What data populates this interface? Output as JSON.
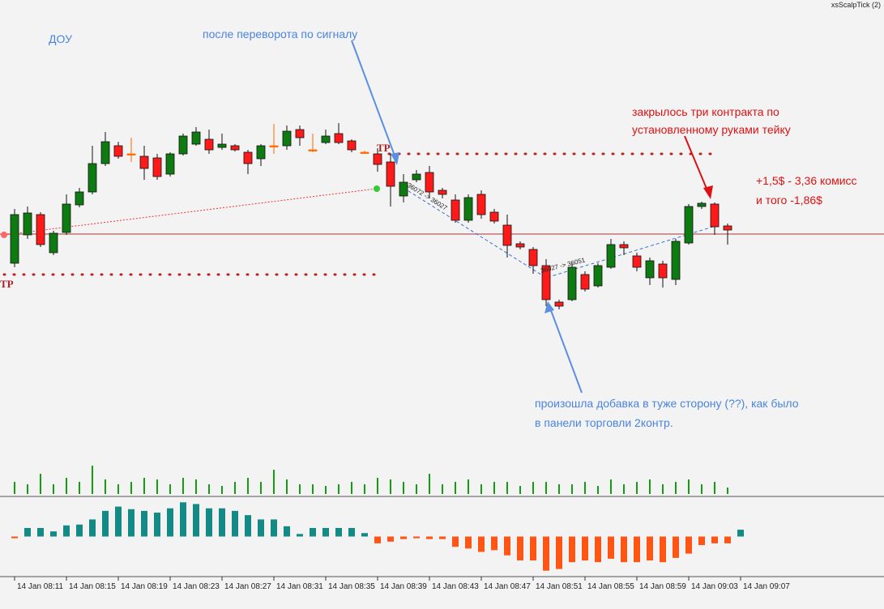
{
  "chart_data": {
    "type": "candlestick",
    "indicator_label": "xsScalpTick (2)",
    "categories": [
      "14 Jan 08:11",
      null,
      null,
      null,
      "14 Jan 08:15",
      null,
      null,
      null,
      "14 Jan 08:19",
      null,
      null,
      null,
      "14 Jan 08:23",
      null,
      null,
      null,
      "14 Jan 08:27",
      null,
      null,
      null,
      "14 Jan 08:31",
      null,
      null,
      null,
      "14 Jan 08:35",
      null,
      null,
      null,
      "14 Jan 08:39",
      null,
      null,
      null,
      "14 Jan 08:43",
      null,
      null,
      null,
      "14 Jan 08:47",
      null,
      null,
      null,
      "14 Jan 08:51",
      null,
      null,
      null,
      "14 Jan 08:55",
      null,
      null,
      null,
      "14 Jan 08:59",
      null,
      null,
      null,
      "14 Jan 09:03",
      null,
      null,
      null,
      "14 Jan 09:07"
    ],
    "open": [
      36035.6,
      36049.6,
      36059.6,
      36040.8,
      36050.8,
      36064.4,
      36070.8,
      36084.8,
      36093.6,
      36089.6,
      36088.4,
      36087.6,
      36079.6,
      36089.6,
      36094.4,
      36096.8,
      36092.8,
      36093.6,
      36090.4,
      36087.2,
      36093.6,
      36093.6,
      36101.6,
      36091.6,
      36095.2,
      36099.6,
      36096,
      36090.4,
      36089.6,
      36085.6,
      36068.8,
      36076.8,
      36080.4,
      36071.6,
      36066.8,
      36056.8,
      36069.6,
      36060.8,
      36054.4,
      36045.2,
      36042.4,
      36034.4,
      36016.4,
      36017.6,
      36030,
      36024.4,
      36033.6,
      36044.8,
      36039.2,
      36028.4,
      36035.2,
      36027.6,
      36045.6,
      36063.6,
      36064.8,
      36054,
      null
    ],
    "high": [
      36062.4,
      36063.6,
      36060.8,
      36051.6,
      36069.6,
      36072.8,
      36093.6,
      36100.4,
      36095.6,
      36097.6,
      36093.6,
      36089.6,
      36090.4,
      36099.6,
      36102.8,
      36101.6,
      36099.6,
      36094.4,
      36091.6,
      36094.4,
      36104.4,
      36103.6,
      36103.6,
      36099.6,
      36101.6,
      36104.8,
      36096.8,
      36091.2,
      36092.4,
      36089.6,
      36079.6,
      36081.6,
      36083.6,
      36072.8,
      36069.6,
      36069.6,
      36071.6,
      36062.4,
      36059.6,
      36046.4,
      36043.6,
      36037.6,
      36017.6,
      36035.6,
      36031.6,
      36035.6,
      36047.6,
      36046.4,
      36040.8,
      36038.4,
      36036.8,
      36047.6,
      36064.8,
      36066,
      36065.6,
      36055.2,
      null
    ],
    "low": [
      36033.6,
      36047.6,
      36043.6,
      36039.6,
      36049.6,
      36063.2,
      36069.6,
      36083.6,
      36087.2,
      36085.6,
      36076.8,
      36076.8,
      36078.4,
      36088.8,
      36093.6,
      36089.6,
      36091.6,
      36090.8,
      36079.6,
      36083.6,
      36089.6,
      36091.6,
      36093.6,
      36090.4,
      36094.4,
      36094.4,
      36090.4,
      36089.6,
      36080.8,
      36063.6,
      36065.6,
      36075.6,
      36067.6,
      36067.6,
      36055.6,
      36055.6,
      36057.6,
      36055.2,
      36038.4,
      36042.4,
      36030.4,
      36014.4,
      36012.8,
      36016.8,
      36021.6,
      36023.6,
      36032.8,
      36039.6,
      36031.6,
      36024.8,
      36023.6,
      36024.8,
      36044.8,
      36062.4,
      36049.6,
      36044.8,
      null
    ],
    "close": [
      36059.6,
      36060.4,
      36044.8,
      36050.4,
      36064.8,
      36070.8,
      36084.8,
      36095.6,
      36088.4,
      36089.6,
      36082.4,
      36078.4,
      36089.6,
      36098.4,
      36100.4,
      36091.6,
      36094.4,
      36091.6,
      36084.8,
      36093.6,
      36093.6,
      36100.8,
      36097.6,
      36091.6,
      36098.4,
      36095.2,
      36091.6,
      36090.4,
      36084.4,
      36073.6,
      36075.6,
      36079.6,
      36070.8,
      36069.6,
      36056.8,
      36068,
      36059.6,
      36056.4,
      36044.4,
      36043.6,
      36034.4,
      36017.6,
      36014.4,
      36033.6,
      36022.8,
      36034.4,
      36044.8,
      36043.2,
      36033.6,
      36036.8,
      36028.4,
      36046.4,
      36063.6,
      36065.2,
      36053.6,
      36052,
      null
    ],
    "ylim": [
      35935.6,
      36165.6
    ],
    "volume": [
      15,
      12,
      25,
      12,
      20,
      15,
      35,
      18,
      12,
      15,
      20,
      18,
      12,
      20,
      18,
      12,
      10,
      15,
      20,
      15,
      30,
      18,
      12,
      12,
      10,
      12,
      15,
      12,
      20,
      18,
      15,
      12,
      25,
      12,
      15,
      18,
      12,
      15,
      15,
      10,
      15,
      15,
      12,
      12,
      15,
      10,
      18,
      12,
      15,
      18,
      12,
      15,
      18,
      12,
      15,
      8,
      null
    ],
    "volume_ylim": [
      0,
      40
    ],
    "oscillator": [
      -2,
      10,
      10,
      6,
      13,
      14,
      20,
      30,
      35,
      32,
      30,
      28,
      33,
      40,
      38,
      33,
      33,
      30,
      25,
      20,
      20,
      12,
      3,
      10,
      10,
      10,
      10,
      4,
      -8,
      -6,
      -3,
      -2,
      -3,
      -3,
      -12,
      -14,
      -18,
      -16,
      -22,
      -28,
      -28,
      -40,
      -38,
      -30,
      -28,
      -30,
      -26,
      -30,
      -30,
      -28,
      -30,
      -25,
      -20,
      -10,
      -8,
      -8,
      8
    ],
    "oscillator_ylim": [
      -45,
      45
    ],
    "up_color": "#0d7a12",
    "down_color": "#ff1a1a",
    "doji_color": "#ff6a00",
    "volume_color": "#10a010",
    "osc_pos_color": "#148a86",
    "osc_neg_color": "#ff5515",
    "tp_label": "TP",
    "trade_labels": [
      "36072 -> 36027",
      "36027 -> 36051"
    ],
    "annotations": [
      "ДОУ",
      "после переворота по сигналу",
      "закрылось три контракта по",
      "установленному  руками тейку",
      "+1,5$ - 3,36 комисс",
      "и того -1,86$",
      "произошла добавка в тужe сторону (??), как было",
      "в панели  торговли 2контр."
    ]
  }
}
